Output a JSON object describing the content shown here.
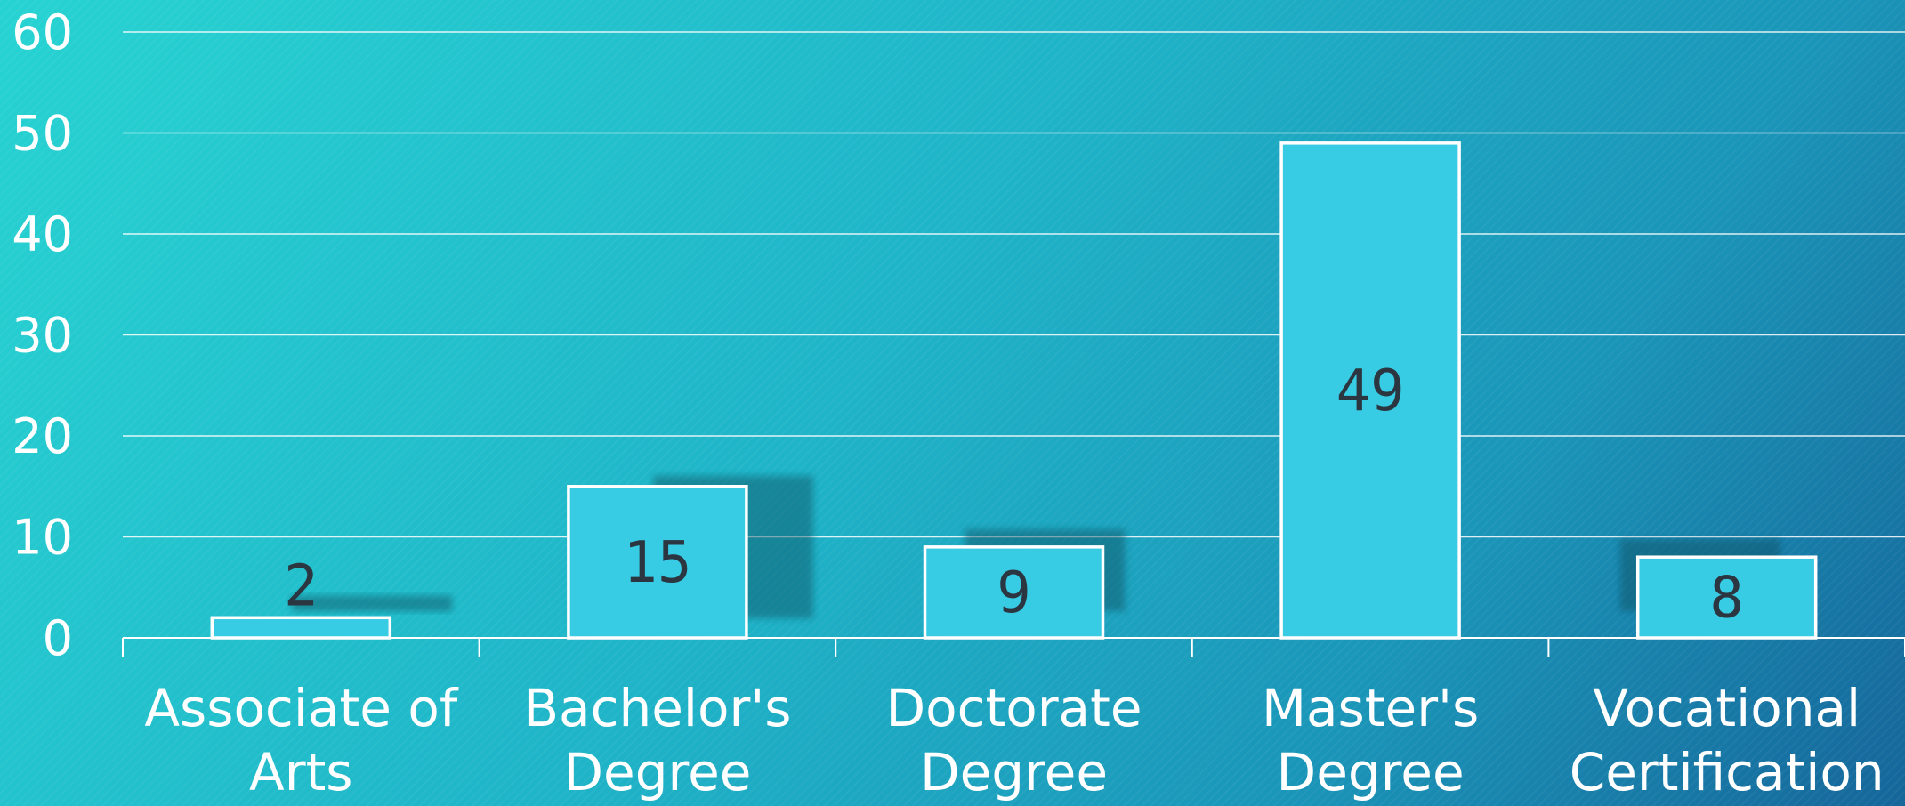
{
  "chart_data": {
    "type": "bar",
    "categories": [
      [
        "Associate of",
        "Arts"
      ],
      [
        "Bachelor's",
        "Degree"
      ],
      [
        "Doctorate",
        "Degree"
      ],
      [
        "Master's",
        "Degree"
      ],
      [
        "Vocational",
        "Certification"
      ]
    ],
    "values": [
      2,
      15,
      9,
      49,
      8
    ],
    "yticks": [
      "0",
      "10",
      "20",
      "30",
      "40",
      "50",
      "60"
    ],
    "ylim": [
      0,
      60
    ],
    "title": "",
    "xlabel": "",
    "ylabel": "",
    "grid": true,
    "legend": "none",
    "colors": {
      "bar_fill": "#38cbe4",
      "bar_stroke": "#ffffff",
      "gridline": "#ffffff",
      "axis_text": "#ffffff",
      "data_label": "#2b3640",
      "shadow": "#0b4f60"
    }
  }
}
